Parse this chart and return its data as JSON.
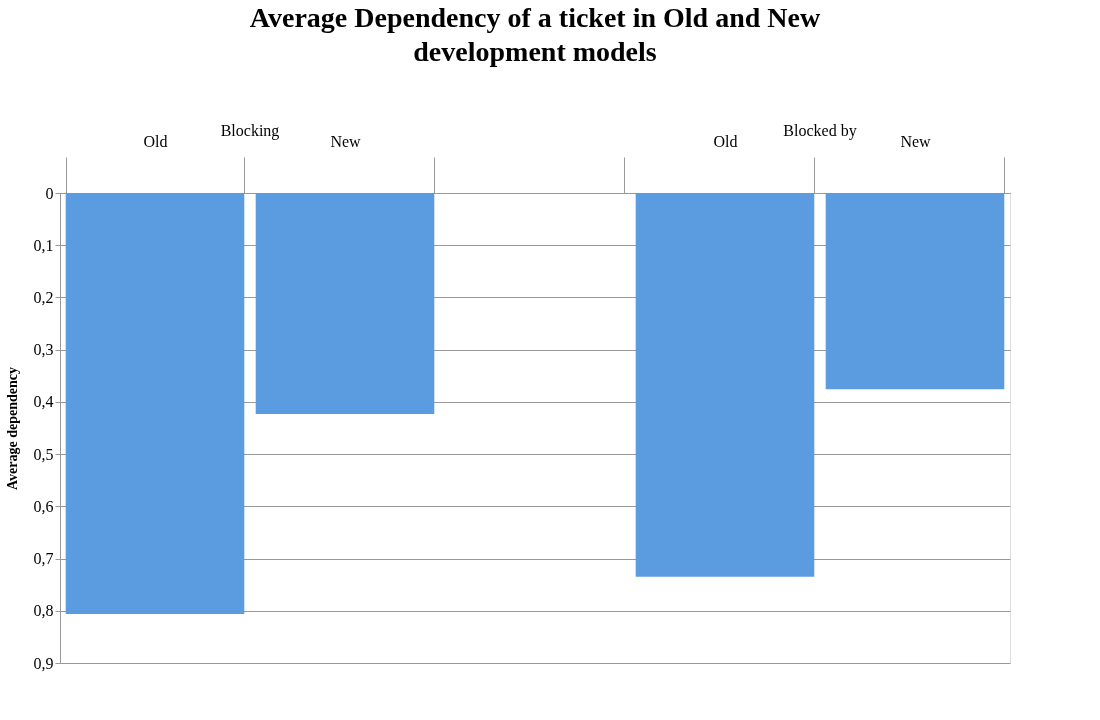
{
  "chart_data": {
    "type": "bar",
    "title": "Average Dependency of a ticket in Old and New development models",
    "ylabel": "Average dependency",
    "categories": [
      "Old",
      "New",
      null,
      "Old",
      "New"
    ],
    "values": [
      0.806,
      0.423,
      null,
      0.735,
      0.376
    ],
    "color": "#5b9be0",
    "annotations": [
      "Blocking",
      "Blocked by"
    ],
    "ylim": [
      0.9,
      0
    ],
    "yticks": [
      0,
      {
        "value": 0.1,
        "label": "0,1"
      },
      {
        "value": 0.2,
        "label": "0,2"
      },
      {
        "value": 0.3,
        "label": "0,3"
      },
      {
        "value": 0.4,
        "label": "0,4"
      },
      {
        "value": 0.5,
        "label": "0,5"
      },
      {
        "value": 0.6,
        "label": "0,6"
      },
      {
        "value": 0.7,
        "label": "0,7"
      },
      {
        "value": 0.8,
        "label": "0,8"
      },
      {
        "value": 0.9,
        "label": "0,9"
      }
    ],
    "grid": "y"
  }
}
